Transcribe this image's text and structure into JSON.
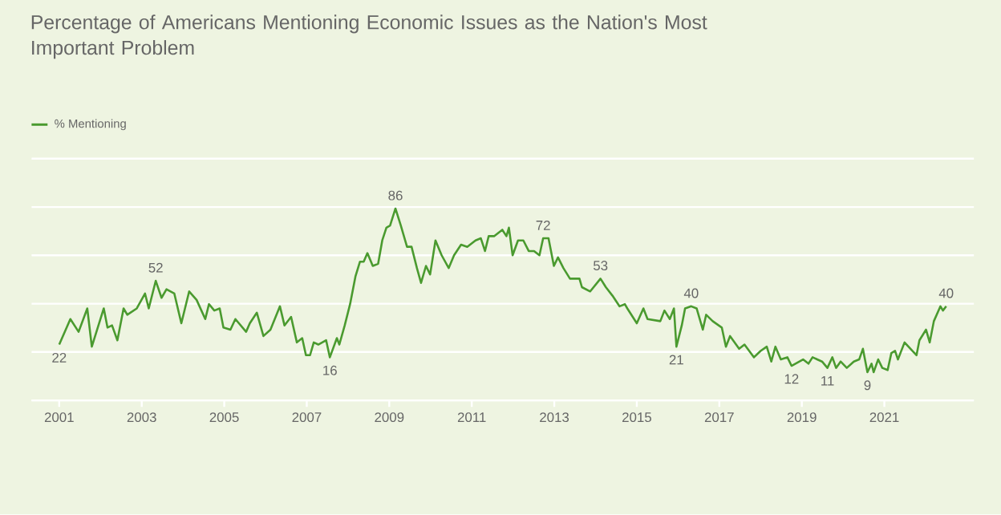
{
  "chart_data": {
    "type": "line",
    "title": "Percentage of Americans Mentioning Economic Issues as the Nation's Most Important Problem",
    "series": [
      {
        "name": "% Mentioning",
        "color": "#4a9a2f",
        "x": [
          2001.0,
          2001.27,
          2001.47,
          2001.68,
          2001.79,
          2002.08,
          2002.17,
          2002.28,
          2002.41,
          2002.56,
          2002.65,
          2002.88,
          2003.08,
          2003.17,
          2003.34,
          2003.48,
          2003.6,
          2003.79,
          2003.96,
          2004.15,
          2004.33,
          2004.54,
          2004.63,
          2004.76,
          2004.89,
          2004.98,
          2005.15,
          2005.27,
          2005.53,
          2005.62,
          2005.79,
          2005.95,
          2006.12,
          2006.35,
          2006.46,
          2006.62,
          2006.76,
          2006.89,
          2006.98,
          2007.08,
          2007.17,
          2007.28,
          2007.47,
          2007.56,
          2007.73,
          2007.79,
          2007.92,
          2008.05,
          2008.18,
          2008.29,
          2008.38,
          2008.47,
          2008.6,
          2008.73,
          2008.83,
          2008.93,
          2009.02,
          2009.15,
          2009.28,
          2009.43,
          2009.54,
          2009.67,
          2009.77,
          2009.89,
          2009.99,
          2010.12,
          2010.27,
          2010.44,
          2010.57,
          2010.74,
          2010.89,
          2011.09,
          2011.22,
          2011.32,
          2011.41,
          2011.54,
          2011.74,
          2011.84,
          2011.9,
          2011.99,
          2012.12,
          2012.25,
          2012.38,
          2012.51,
          2012.64,
          2012.73,
          2012.86,
          2012.99,
          2013.09,
          2013.22,
          2013.38,
          2013.61,
          2013.67,
          2013.87,
          2014.12,
          2014.25,
          2014.41,
          2014.58,
          2014.71,
          2014.77,
          2015.0,
          2015.16,
          2015.26,
          2015.57,
          2015.67,
          2015.8,
          2015.9,
          2015.96,
          2016.09,
          2016.17,
          2016.32,
          2016.45,
          2016.6,
          2016.68,
          2016.84,
          2017.06,
          2017.16,
          2017.26,
          2017.48,
          2017.61,
          2017.84,
          2018.0,
          2018.15,
          2018.26,
          2018.36,
          2018.49,
          2018.65,
          2018.75,
          2019.03,
          2019.16,
          2019.26,
          2019.49,
          2019.62,
          2019.74,
          2019.83,
          2019.94,
          2020.09,
          2020.26,
          2020.39,
          2020.48,
          2020.59,
          2020.69,
          2020.74,
          2020.85,
          2020.95,
          2021.08,
          2021.17,
          2021.26,
          2021.33,
          2021.49,
          2021.68,
          2021.78,
          2021.85,
          2022.01,
          2022.1,
          2022.2,
          2022.36,
          2022.42,
          2022.5
        ],
        "values": [
          22,
          34,
          28,
          39,
          21,
          39,
          30,
          31,
          24,
          39,
          36,
          39,
          46,
          39,
          52,
          44,
          48,
          46,
          32,
          47,
          43,
          34,
          41,
          38,
          39,
          30,
          29,
          34,
          28,
          32,
          37,
          26,
          29,
          40,
          31,
          35,
          23,
          25,
          17,
          17,
          23,
          22,
          24,
          16,
          25,
          22,
          31,
          41,
          54,
          61,
          61,
          65,
          59,
          60,
          71,
          77,
          78,
          86,
          78,
          68,
          68,
          58,
          51,
          59,
          55,
          71,
          64,
          58,
          64,
          69,
          68,
          71,
          72,
          66,
          73,
          73,
          76,
          73,
          77,
          64,
          71,
          71,
          66,
          66,
          64,
          72,
          72,
          59,
          63,
          58,
          53,
          53,
          49,
          47,
          53,
          49,
          45,
          40,
          41,
          39,
          32,
          39,
          34,
          33,
          38,
          34,
          39,
          21,
          31,
          39,
          40,
          39,
          29,
          36,
          33,
          30,
          21,
          26,
          20,
          22,
          16,
          19,
          21,
          14,
          21,
          15,
          16,
          12,
          15,
          13,
          16,
          14,
          11,
          16,
          11,
          14,
          11,
          14,
          15,
          20,
          9,
          13,
          9,
          15,
          11,
          10,
          18,
          19,
          15,
          23,
          19,
          17,
          24,
          29,
          23,
          33,
          40,
          38,
          40
        ],
        "value_labels": [
          "22",
          null,
          null,
          null,
          null,
          null,
          null,
          null,
          null,
          null,
          null,
          null,
          null,
          null,
          "52",
          null,
          null,
          null,
          null,
          null,
          null,
          null,
          null,
          null,
          null,
          null,
          null,
          null,
          null,
          null,
          null,
          null,
          null,
          null,
          null,
          null,
          null,
          null,
          null,
          null,
          null,
          null,
          null,
          "16",
          null,
          null,
          null,
          null,
          null,
          null,
          null,
          null,
          null,
          null,
          null,
          null,
          null,
          "86",
          null,
          null,
          null,
          null,
          null,
          null,
          null,
          null,
          null,
          null,
          null,
          null,
          null,
          null,
          null,
          null,
          null,
          null,
          null,
          null,
          null,
          null,
          null,
          null,
          null,
          null,
          null,
          "72",
          null,
          null,
          null,
          null,
          null,
          null,
          null,
          null,
          "53",
          null,
          null,
          null,
          null,
          null,
          null,
          null,
          null,
          null,
          null,
          null,
          null,
          "21",
          null,
          null,
          "40",
          null,
          null,
          null,
          null,
          null,
          null,
          null,
          null,
          null,
          null,
          null,
          null,
          null,
          null,
          null,
          null,
          "12",
          null,
          null,
          null,
          null,
          "11",
          null,
          null,
          null,
          null,
          null,
          null,
          null,
          "9",
          null,
          null,
          null,
          null,
          null,
          null,
          null,
          null,
          null,
          null,
          null,
          null,
          null,
          null,
          null,
          null,
          null,
          "40"
        ]
      }
    ],
    "xlim": [
      2000.33,
      2023.17
    ],
    "xticks": [
      2001,
      2003,
      2005,
      2007,
      2009,
      2011,
      2013,
      2015,
      2017,
      2019,
      2021
    ],
    "ylim": [
      -4.3,
      109.5
    ],
    "yticks": [
      {
        "value": -4.3,
        "label": null
      },
      {
        "value": 18.5,
        "label": null
      },
      {
        "value": 41.2,
        "label": null
      },
      {
        "value": 64.0,
        "label": null
      },
      {
        "value": 86.7,
        "label": null
      },
      {
        "value": 109.5,
        "label": null
      }
    ],
    "grid": "y",
    "legend": "top left",
    "marker": "none",
    "line_style": "solid",
    "tick_labels": "x"
  }
}
